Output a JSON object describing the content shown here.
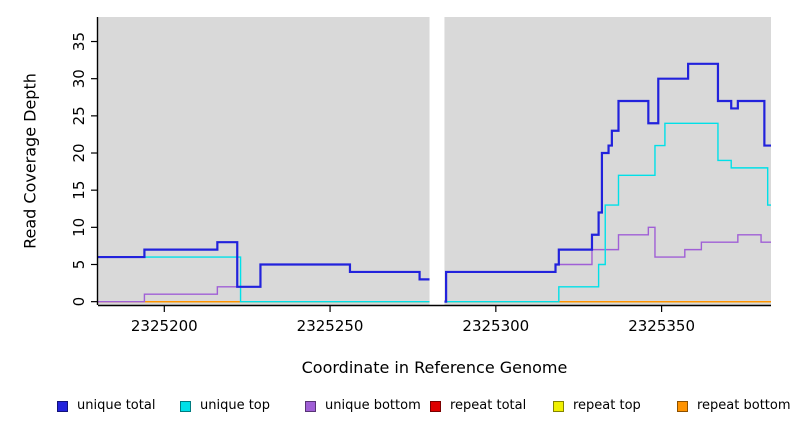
{
  "figure": {
    "x_axis_title": "Coordinate in Reference Genome",
    "y_axis_title": "Read Coverage Depth"
  },
  "chart_data": {
    "type": "line",
    "subtype": "step-after",
    "title": "",
    "xlabel": "Coordinate in Reference Genome",
    "ylabel": "Read Coverage Depth",
    "xlim": [
      2325180,
      2325383
    ],
    "ylim": [
      -0.45,
      38.3
    ],
    "panel_background": "#d9d9d9",
    "axis_color": "#000000",
    "grid": "off",
    "legend_position": "bottom",
    "x_ticks": {
      "values": [
        2325200,
        2325250,
        2325300,
        2325350
      ],
      "labels": [
        "2325200",
        "2325250",
        "2325300",
        "2325350"
      ]
    },
    "y_ticks": {
      "values": [
        0,
        5,
        10,
        15,
        20,
        25,
        30,
        35
      ],
      "labels": [
        "0",
        "5",
        "10",
        "15",
        "20",
        "25",
        "30",
        "35"
      ]
    },
    "gap_region": {
      "from": 2325280,
      "to": 2325284.5,
      "color": "#ffffff"
    },
    "series": [
      {
        "name": "unique total",
        "color": "#2222dc",
        "width": 2.2,
        "points": [
          [
            2325180,
            6
          ],
          [
            2325194,
            7
          ],
          [
            2325216,
            8
          ],
          [
            2325222,
            2
          ],
          [
            2325229,
            5
          ],
          [
            2325256,
            4
          ],
          [
            2325277,
            3
          ],
          [
            2325281,
            0
          ],
          [
            2325285,
            4
          ],
          [
            2325318,
            5
          ],
          [
            2325319,
            7
          ],
          [
            2325329,
            9
          ],
          [
            2325331,
            12
          ],
          [
            2325332,
            20
          ],
          [
            2325334,
            21
          ],
          [
            2325335,
            23
          ],
          [
            2325337,
            27
          ],
          [
            2325346,
            24
          ],
          [
            2325349,
            30
          ],
          [
            2325358,
            32
          ],
          [
            2325367,
            27
          ],
          [
            2325371,
            26
          ],
          [
            2325373,
            27
          ],
          [
            2325381,
            21
          ],
          [
            2325383,
            21
          ]
        ]
      },
      {
        "name": "unique top",
        "color": "#00e0e8",
        "width": 1.4,
        "points": [
          [
            2325180,
            6
          ],
          [
            2325223,
            0
          ],
          [
            2325319,
            2
          ],
          [
            2325331,
            5
          ],
          [
            2325333,
            13
          ],
          [
            2325337,
            17
          ],
          [
            2325348,
            21
          ],
          [
            2325351,
            24
          ],
          [
            2325367,
            19
          ],
          [
            2325371,
            18
          ],
          [
            2325382,
            13
          ],
          [
            2325383,
            13
          ]
        ]
      },
      {
        "name": "unique bottom",
        "color": "#a05fd6",
        "width": 1.4,
        "points": [
          [
            2325180,
            0
          ],
          [
            2325194,
            1
          ],
          [
            2325216,
            2
          ],
          [
            2325229,
            5
          ],
          [
            2325256,
            4
          ],
          [
            2325277,
            3
          ],
          [
            2325281,
            0
          ],
          [
            2325285,
            4
          ],
          [
            2325318,
            5
          ],
          [
            2325329,
            7
          ],
          [
            2325337,
            9
          ],
          [
            2325346,
            10
          ],
          [
            2325348,
            6
          ],
          [
            2325357,
            7
          ],
          [
            2325362,
            8
          ],
          [
            2325373,
            9
          ],
          [
            2325380,
            8
          ],
          [
            2325383,
            8
          ]
        ]
      },
      {
        "name": "repeat total",
        "color": "#dd0000",
        "width": 1.4,
        "points": [
          [
            2325180,
            0
          ],
          [
            2325383,
            0
          ]
        ]
      },
      {
        "name": "repeat top",
        "color": "#f0f000",
        "width": 1.4,
        "points": [
          [
            2325180,
            0
          ],
          [
            2325383,
            0
          ]
        ]
      },
      {
        "name": "repeat bottom",
        "color": "#ff9300",
        "width": 1.4,
        "points": [
          [
            2325180,
            0
          ],
          [
            2325383,
            0
          ]
        ]
      }
    ],
    "draw_order": [
      3,
      4,
      5,
      2,
      1,
      0
    ]
  }
}
